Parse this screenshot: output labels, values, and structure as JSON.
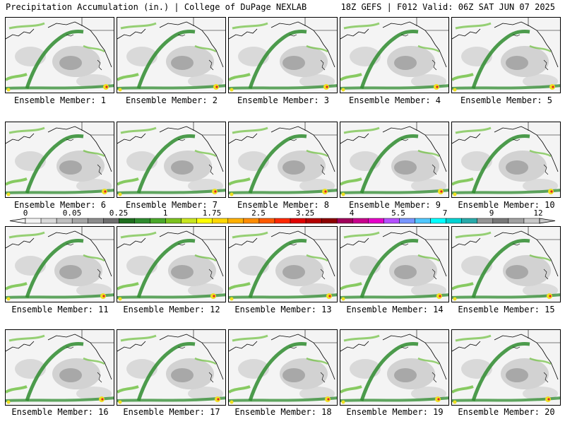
{
  "header": {
    "left": "Precipitation Accumulation (in.) | College of DuPage NEXLAB",
    "right": "18Z GEFS | F012 Valid: 06Z SAT JUN 07 2025"
  },
  "members": [
    "Ensemble Member: 1",
    "Ensemble Member: 2",
    "Ensemble Member: 3",
    "Ensemble Member: 4",
    "Ensemble Member: 5",
    "Ensemble Member: 6",
    "Ensemble Member: 7",
    "Ensemble Member: 8",
    "Ensemble Member: 9",
    "Ensemble Member: 10",
    "Ensemble Member: 11",
    "Ensemble Member: 12",
    "Ensemble Member: 13",
    "Ensemble Member: 14",
    "Ensemble Member: 15",
    "Ensemble Member: 16",
    "Ensemble Member: 17",
    "Ensemble Member: 18",
    "Ensemble Member: 19",
    "Ensemble Member: 20"
  ],
  "colorbar": {
    "tick_labels": [
      "0",
      "0.05",
      "0.25",
      "1",
      "1.75",
      "2.5",
      "3.25",
      "4",
      "5.5",
      "7",
      "9",
      "12"
    ],
    "colors": [
      "#f2f2f2",
      "#d9d9d9",
      "#bfbfbf",
      "#a6a6a6",
      "#8c8c8c",
      "#6e6e6e",
      "#1e6e1e",
      "#2e8b2e",
      "#4aa82a",
      "#7cc21e",
      "#c8e61e",
      "#ffff00",
      "#ffd700",
      "#ffb000",
      "#ff8c00",
      "#ff5a00",
      "#ff2800",
      "#e00000",
      "#b40000",
      "#8c0000",
      "#a0005a",
      "#c8008c",
      "#e600c8",
      "#b450ff",
      "#7896ff",
      "#50c8ff",
      "#00ffff",
      "#00d2d2",
      "#28aaaa",
      "#969696",
      "#787878",
      "#a0a0a0",
      "#c8c8c8"
    ]
  },
  "map_colors": {
    "ocean": "#f4f4f4",
    "light_gray": "#d2d2d2",
    "mid_gray": "#a8a8a8",
    "green_dark": "#2e8b2e",
    "green_light": "#6cbf3c",
    "yellow": "#f0e020",
    "red": "#e02020",
    "coast": "#000000"
  }
}
